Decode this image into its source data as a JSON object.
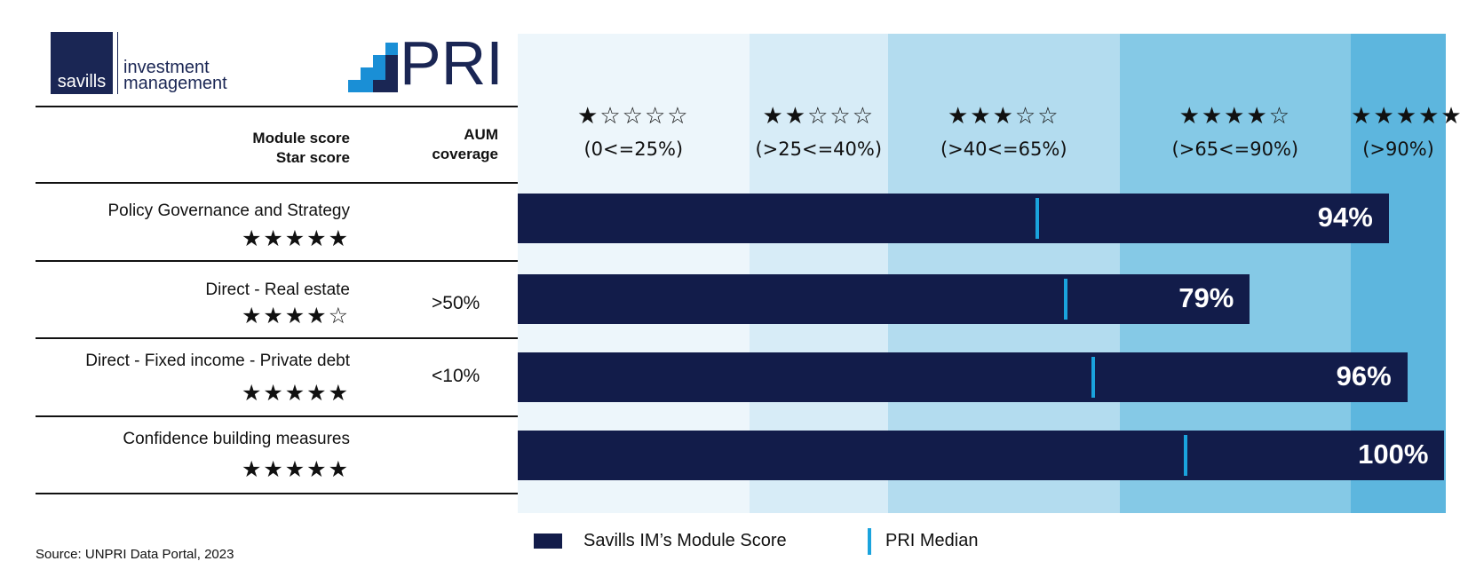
{
  "logos": {
    "savills_line1": "investment",
    "savills_line2": "management",
    "savills_box": "savills",
    "pri": "PRI"
  },
  "header": {
    "col1_line1": "Module score",
    "col1_line2": "Star score",
    "col2_line1": "AUM",
    "col2_line2": "coverage"
  },
  "bands": [
    {
      "stars": "★☆☆☆☆",
      "range": "(0<=25%)",
      "color": "#edf6fb"
    },
    {
      "stars": "★★☆☆☆",
      "range": "(>25<=40%)",
      "color": "#d7ecf7"
    },
    {
      "stars": "★★★☆☆",
      "range": "(>40<=65%)",
      "color": "#b3dcef"
    },
    {
      "stars": "★★★★☆",
      "range": "(>65<=90%)",
      "color": "#85c9e6"
    },
    {
      "stars": "★★★★★",
      "range": "(>90%)",
      "color": "#5db6de"
    }
  ],
  "rows": [
    {
      "label": "Policy Governance and Strategy",
      "stars": "★★★★★",
      "aum": "",
      "value_label": "94%"
    },
    {
      "label": "Direct - Real estate",
      "stars": "★★★★☆",
      "aum": ">50%",
      "value_label": "79%"
    },
    {
      "label": "Direct - Fixed income - Private debt",
      "stars": "★★★★★",
      "aum": "<10%",
      "value_label": "96%"
    },
    {
      "label": "Confidence building measures",
      "stars": "★★★★★",
      "aum": "",
      "value_label": "100%"
    }
  ],
  "legend": {
    "score": "Savills IM’s Module Score",
    "median": "PRI Median"
  },
  "source": "Source: UNPRI Data Portal, 2023",
  "colors": {
    "bar": "#121c4a",
    "median": "#1aa3dd",
    "logo_navy": "#1a2654",
    "pri_blue": "#1a8fd6"
  },
  "chart_data": {
    "type": "bar",
    "orientation": "horizontal",
    "categories": [
      "Policy Governance and Strategy",
      "Direct - Real estate",
      "Direct - Fixed income - Private debt",
      "Confidence building measures"
    ],
    "series": [
      {
        "name": "Savills IM’s Module Score",
        "values": [
          94,
          79,
          96,
          100
        ]
      },
      {
        "name": "PRI Median",
        "values": [
          56,
          59,
          62,
          72
        ]
      }
    ],
    "band_breaks": [
      25,
      40,
      65,
      90
    ],
    "xlim": [
      0,
      100
    ],
    "grid": false,
    "legend": "bottom"
  }
}
